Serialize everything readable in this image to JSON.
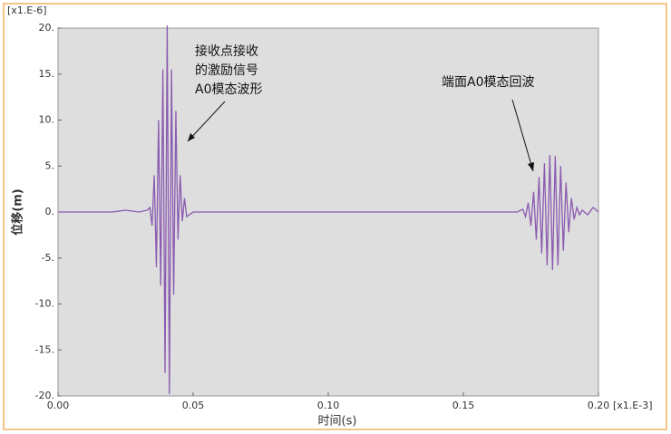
{
  "chart_data": {
    "type": "line",
    "ylabel": "位移(m)",
    "xlabel": "时间(s)",
    "y_multiplier": "[x1.E-6]",
    "x_multiplier": "[x1.E-3]",
    "annotations": [
      {
        "text": [
          "接收点接收",
          "的激励信号",
          "A0模态波形"
        ]
      },
      {
        "text": [
          "端面A0模态回波"
        ]
      }
    ],
    "xlim": [
      0,
      0.2
    ],
    "ylim": [
      -20,
      20
    ],
    "xticks": [
      {
        "value": 0,
        "label": "0.00"
      },
      {
        "value": 0.05,
        "label": "0.05"
      },
      {
        "value": 0.1,
        "label": "0.10"
      },
      {
        "value": 0.15,
        "label": "0.15"
      },
      {
        "value": 0.2,
        "label": "0.20"
      }
    ],
    "yticks": [
      {
        "value": 20,
        "label": "20."
      },
      {
        "value": 15,
        "label": "15."
      },
      {
        "value": 10,
        "label": "10."
      },
      {
        "value": 5,
        "label": "5."
      },
      {
        "value": 0,
        "label": "0."
      },
      {
        "value": -5,
        "label": "-5."
      },
      {
        "value": -10,
        "label": "-10."
      },
      {
        "value": -15,
        "label": "-15."
      },
      {
        "value": -20,
        "label": "-20."
      }
    ],
    "x": [
      0,
      0.02,
      0.025,
      0.03,
      0.033,
      0.034,
      0.0348,
      0.0356,
      0.0364,
      0.0372,
      0.038,
      0.0388,
      0.0396,
      0.0404,
      0.0412,
      0.042,
      0.0428,
      0.0436,
      0.0444,
      0.0452,
      0.046,
      0.0468,
      0.0476,
      0.05,
      0.06,
      0.09,
      0.12,
      0.17,
      0.172,
      0.173,
      0.174,
      0.175,
      0.176,
      0.177,
      0.178,
      0.179,
      0.18,
      0.181,
      0.182,
      0.183,
      0.184,
      0.185,
      0.186,
      0.187,
      0.188,
      0.189,
      0.19,
      0.191,
      0.192,
      0.193,
      0.194,
      0.196,
      0.198,
      0.2
    ],
    "series": [
      {
        "color": "#8a5ab0",
        "values": [
          0,
          0,
          0.2,
          0,
          0.2,
          0.5,
          -1.5,
          4,
          -6,
          10,
          -8,
          15.5,
          -17.5,
          20.3,
          -19.8,
          15.5,
          -9,
          11,
          -3,
          4,
          -1,
          1.5,
          -0.5,
          0,
          0,
          0,
          0,
          0,
          0.3,
          -0.5,
          1,
          -1.5,
          2.2,
          -3,
          3.8,
          -4.5,
          5.3,
          -5.8,
          6.2,
          -6.3,
          6.1,
          -5.8,
          5,
          -4.2,
          3.2,
          -2.2,
          1.5,
          -0.8,
          0.5,
          -0.3,
          0.2,
          -0.3,
          0.5,
          0
        ]
      }
    ]
  }
}
